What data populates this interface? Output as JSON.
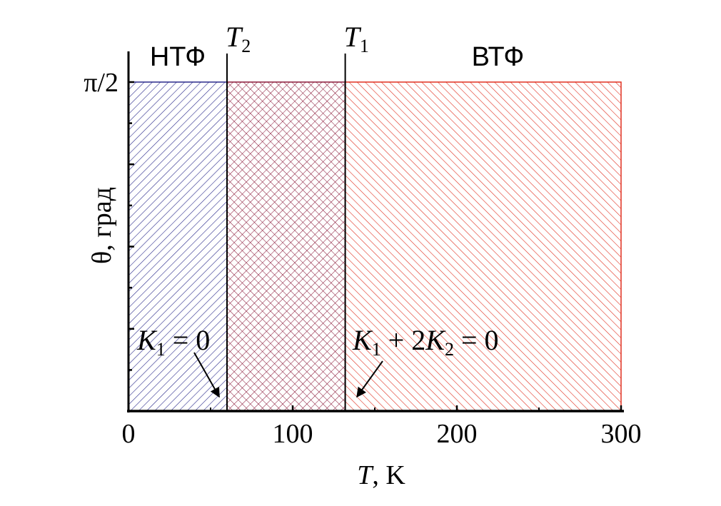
{
  "chart_data": {
    "type": "area",
    "xlabel": "T, K",
    "xlabel_parts": {
      "var": "T",
      "rest": ", K"
    },
    "ylabel": "θ, град",
    "xlim": [
      0,
      300
    ],
    "ylim": [
      0,
      1.5708
    ],
    "x_ticks": [
      {
        "value": 0,
        "label": "0"
      },
      {
        "value": 100,
        "label": "100"
      },
      {
        "value": 200,
        "label": "200"
      },
      {
        "value": 300,
        "label": "300"
      }
    ],
    "y_ticks": [
      {
        "value": 1.5708,
        "label": "π/2"
      }
    ],
    "regions": [
      {
        "x0": 0,
        "x1": 60,
        "color": "#2a2a8c",
        "pattern": "forward"
      },
      {
        "x0": 60,
        "x1": 132,
        "color": "#8b1a3a",
        "pattern": "cross"
      },
      {
        "x0": 132,
        "x1": 300,
        "color": "#e03020",
        "pattern": "backward"
      }
    ],
    "phase_labels": [
      {
        "x": 30,
        "text": "НТФ"
      },
      {
        "x": 225,
        "text": "ВТФ"
      }
    ],
    "transitions": [
      {
        "x": 60,
        "label_var": "T",
        "label_sub": "2"
      },
      {
        "x": 132,
        "label_var": "T",
        "label_sub": "1"
      }
    ],
    "annotations": [
      {
        "id": "k1",
        "parts": [
          "K",
          "1",
          " = 0"
        ],
        "arrow_to_x": 57
      },
      {
        "id": "k1k2",
        "parts": [
          "K",
          "1",
          " + 2",
          "K",
          "2",
          " = 0"
        ],
        "arrow_to_x": 140
      }
    ],
    "colors": {
      "axis": "#000000",
      "low_phase": "#2a2a8c",
      "mid_phase": "#8b1a3a",
      "high_phase": "#e03020"
    }
  }
}
